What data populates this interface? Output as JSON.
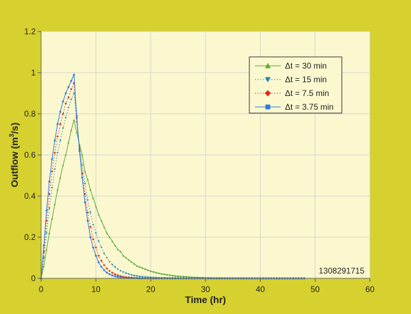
{
  "chart_data": {
    "type": "line",
    "xlabel": "Time (hr)",
    "ylabel_main": "Outflow (m",
    "ylabel_sup": "3",
    "ylabel_tail": "/s)",
    "xlim": [
      0,
      60
    ],
    "ylim": [
      0,
      1.2
    ],
    "xticks": [
      0,
      10,
      20,
      30,
      40,
      50,
      60
    ],
    "yticks": [
      0,
      0.2,
      0.4,
      0.6,
      0.8,
      1,
      1.2
    ],
    "ytick_labels": [
      "0",
      "0.2",
      "0.4",
      "0.6",
      "0.8",
      "1",
      "1.2"
    ],
    "grid": true,
    "legend_position": "top-right",
    "annotation": "1308291715",
    "series": [
      {
        "name": "Δt = 30 min",
        "color": "#5fa83a",
        "style": "solid",
        "marker": "triangle-up",
        "x": [
          0,
          0.5,
          1,
          1.5,
          2,
          2.5,
          3,
          3.5,
          4,
          4.5,
          5,
          5.5,
          6,
          6.5,
          7,
          7.5,
          8,
          8.5,
          9,
          9.5,
          10,
          10.5,
          11,
          11.5,
          12,
          12.5,
          13,
          13.5,
          14,
          14.5,
          15,
          15.5,
          16,
          16.5,
          17,
          17.5,
          18,
          18.5,
          19,
          19.5,
          20,
          20.5,
          21,
          21.5,
          22,
          22.5,
          23,
          23.5,
          24,
          24.5,
          25,
          25.5,
          26,
          26.5,
          27,
          27.5,
          28,
          28.5,
          29,
          29.5,
          30,
          30.5,
          31,
          31.5,
          32,
          32.5,
          33,
          33.5,
          34,
          34.5,
          35,
          35.5,
          36,
          36.5,
          37,
          37.5,
          38,
          38.5,
          39,
          39.5,
          40,
          40.5,
          41,
          41.5,
          42,
          42.5,
          43,
          43.5,
          44,
          44.5,
          45,
          45.5,
          46,
          46.5,
          47,
          47.5,
          48
        ],
        "y": [
          0,
          0.06,
          0.14,
          0.22,
          0.29,
          0.36,
          0.43,
          0.49,
          0.55,
          0.6,
          0.66,
          0.72,
          0.77,
          0.71,
          0.65,
          0.6,
          0.52,
          0.48,
          0.43,
          0.39,
          0.35,
          0.31,
          0.28,
          0.25,
          0.22,
          0.2,
          0.18,
          0.16,
          0.14,
          0.13,
          0.11,
          0.1,
          0.09,
          0.08,
          0.07,
          0.06,
          0.055,
          0.05,
          0.045,
          0.04,
          0.035,
          0.032,
          0.028,
          0.025,
          0.022,
          0.02,
          0.018,
          0.016,
          0.014,
          0.012,
          0.011,
          0.01,
          0.009,
          0.008,
          0.007,
          0.006,
          0.005,
          0.005,
          0.004,
          0.004,
          0.003,
          0.003,
          0.003,
          0.002,
          0.002,
          0.002,
          0.002,
          0.001,
          0.001,
          0.001,
          0.001,
          0.001,
          0.001,
          0.001,
          0.001,
          0,
          0,
          0,
          0,
          0,
          0,
          0,
          0,
          0,
          0,
          0,
          0,
          0,
          0,
          0,
          0,
          0,
          0,
          0,
          0,
          0,
          0
        ]
      },
      {
        "name": "Δt = 15 min",
        "color": "#1f8aa8",
        "style": "dotted",
        "marker": "triangle-down",
        "x": [
          0,
          0.5,
          1,
          1.5,
          2,
          2.5,
          3,
          3.5,
          4,
          4.5,
          5,
          5.5,
          6,
          6.5,
          7,
          7.5,
          8,
          8.5,
          9,
          9.5,
          10,
          10.5,
          11,
          11.5,
          12,
          12.5,
          13,
          13.5,
          14,
          14.5,
          15,
          15.5,
          16,
          16.5,
          17,
          17.5,
          18,
          18.5,
          19,
          19.5,
          20,
          20.5,
          21,
          21.5,
          22,
          22.5,
          23,
          23.5,
          24,
          24.5,
          25,
          25.5,
          26,
          26.5,
          27,
          27.5,
          28,
          28.5,
          29,
          29.5,
          30,
          30.5,
          31,
          31.5,
          32,
          32.5,
          33,
          33.5,
          34,
          34.5,
          35,
          35.5,
          36,
          36.5,
          37,
          37.5,
          38,
          38.5,
          39,
          39.5,
          40,
          40.5,
          41,
          41.5,
          42,
          42.5,
          43,
          43.5,
          44,
          44.5,
          45,
          45.5,
          46,
          46.5,
          47,
          47.5,
          48
        ],
        "y": [
          0,
          0.1,
          0.22,
          0.34,
          0.44,
          0.53,
          0.61,
          0.67,
          0.73,
          0.78,
          0.83,
          0.87,
          0.9,
          0.76,
          0.64,
          0.55,
          0.46,
          0.38,
          0.32,
          0.26,
          0.22,
          0.18,
          0.15,
          0.12,
          0.1,
          0.08,
          0.066,
          0.054,
          0.044,
          0.036,
          0.03,
          0.024,
          0.02,
          0.016,
          0.013,
          0.011,
          0.009,
          0.007,
          0.006,
          0.005,
          0.004,
          0.003,
          0.003,
          0.002,
          0.002,
          0.002,
          0.001,
          0.001,
          0.001,
          0.001,
          0.001,
          0,
          0,
          0,
          0,
          0,
          0,
          0,
          0,
          0,
          0,
          0,
          0,
          0,
          0,
          0,
          0,
          0,
          0,
          0,
          0,
          0,
          0,
          0,
          0,
          0,
          0,
          0,
          0,
          0,
          0,
          0,
          0,
          0,
          0,
          0,
          0,
          0,
          0,
          0,
          0,
          0,
          0,
          0,
          0,
          0,
          0
        ]
      },
      {
        "name": "Δt = 7.5 min",
        "color": "#e0281e",
        "style": "dotted",
        "marker": "diamond",
        "x": [
          0,
          0.5,
          1,
          1.5,
          2,
          2.5,
          3,
          3.5,
          4,
          4.5,
          5,
          5.5,
          6,
          6.5,
          7,
          7.5,
          8,
          8.5,
          9,
          9.5,
          10,
          10.5,
          11,
          11.5,
          12,
          12.5,
          13,
          13.5,
          14,
          14.5,
          15,
          15.5,
          16,
          16.5,
          17,
          17.5,
          18,
          18.5,
          19,
          19.5,
          20,
          20.5,
          21,
          21.5,
          22,
          22.5,
          23,
          23.5,
          24,
          24.5,
          25,
          25.5,
          26,
          26.5,
          27,
          27.5,
          28,
          28.5,
          29,
          29.5,
          30,
          30.5,
          31,
          31.5,
          32,
          32.5,
          33,
          33.5,
          34,
          34.5,
          35,
          35.5,
          36,
          36.5,
          37,
          37.5,
          38,
          38.5,
          39,
          39.5,
          40,
          40.5,
          41,
          41.5,
          42,
          42.5,
          43,
          43.5,
          44,
          44.5,
          45,
          45.5,
          46,
          46.5,
          47,
          47.5,
          48
        ],
        "y": [
          0,
          0.13,
          0.28,
          0.41,
          0.52,
          0.61,
          0.69,
          0.75,
          0.8,
          0.85,
          0.88,
          0.92,
          0.95,
          0.78,
          0.63,
          0.51,
          0.41,
          0.32,
          0.25,
          0.19,
          0.15,
          0.11,
          0.085,
          0.064,
          0.048,
          0.036,
          0.027,
          0.02,
          0.015,
          0.011,
          0.008,
          0.006,
          0.005,
          0.004,
          0.003,
          0.002,
          0.002,
          0.001,
          0.001,
          0.001,
          0.001,
          0,
          0,
          0,
          0,
          0,
          0,
          0,
          0,
          0,
          0,
          0,
          0,
          0,
          0,
          0,
          0,
          0,
          0,
          0,
          0,
          0,
          0,
          0,
          0,
          0,
          0,
          0,
          0,
          0,
          0,
          0,
          0,
          0,
          0,
          0,
          0,
          0,
          0,
          0,
          0,
          0,
          0,
          0,
          0,
          0,
          0,
          0,
          0,
          0,
          0,
          0,
          0,
          0,
          0,
          0,
          0
        ]
      },
      {
        "name": "Δt = 3.75 min",
        "color": "#2f78d6",
        "style": "solid",
        "marker": "square",
        "x": [
          0,
          0.5,
          1,
          1.5,
          2,
          2.5,
          3,
          3.5,
          4,
          4.5,
          5,
          5.5,
          6,
          6.5,
          7,
          7.5,
          8,
          8.5,
          9,
          9.5,
          10,
          10.5,
          11,
          11.5,
          12,
          12.5,
          13,
          13.5,
          14,
          14.5,
          15,
          15.5,
          16,
          16.5,
          17,
          17.5,
          18,
          18.5,
          19,
          19.5,
          20,
          20.5,
          21,
          21.5,
          22,
          22.5,
          23,
          23.5,
          24,
          24.5,
          25,
          25.5,
          26,
          26.5,
          27,
          27.5,
          28,
          28.5,
          29,
          29.5,
          30,
          30.5,
          31,
          31.5,
          32,
          32.5,
          33,
          33.5,
          34,
          34.5,
          35,
          35.5,
          36,
          36.5,
          37,
          37.5,
          38,
          38.5,
          39,
          39.5,
          40,
          40.5,
          41,
          41.5,
          42,
          42.5,
          43,
          43.5,
          44,
          44.5,
          45,
          45.5,
          46,
          46.5,
          47,
          47.5,
          48
        ],
        "y": [
          0,
          0.16,
          0.33,
          0.47,
          0.58,
          0.67,
          0.75,
          0.81,
          0.86,
          0.9,
          0.93,
          0.96,
          0.99,
          0.79,
          0.62,
          0.49,
          0.37,
          0.28,
          0.2,
          0.15,
          0.11,
          0.078,
          0.056,
          0.04,
          0.028,
          0.02,
          0.014,
          0.01,
          0.007,
          0.005,
          0.004,
          0.003,
          0.002,
          0.001,
          0.001,
          0.001,
          0,
          0,
          0,
          0,
          0,
          0,
          0,
          0,
          0,
          0,
          0,
          0,
          0,
          0,
          0,
          0,
          0,
          0,
          0,
          0,
          0,
          0,
          0,
          0,
          0,
          0,
          0,
          0,
          0,
          0,
          0,
          0,
          0,
          0,
          0,
          0,
          0,
          0,
          0,
          0,
          0,
          0,
          0,
          0,
          0,
          0,
          0,
          0,
          0,
          0,
          0,
          0,
          0,
          0,
          0,
          0,
          0,
          0,
          0,
          0,
          0
        ]
      }
    ]
  }
}
